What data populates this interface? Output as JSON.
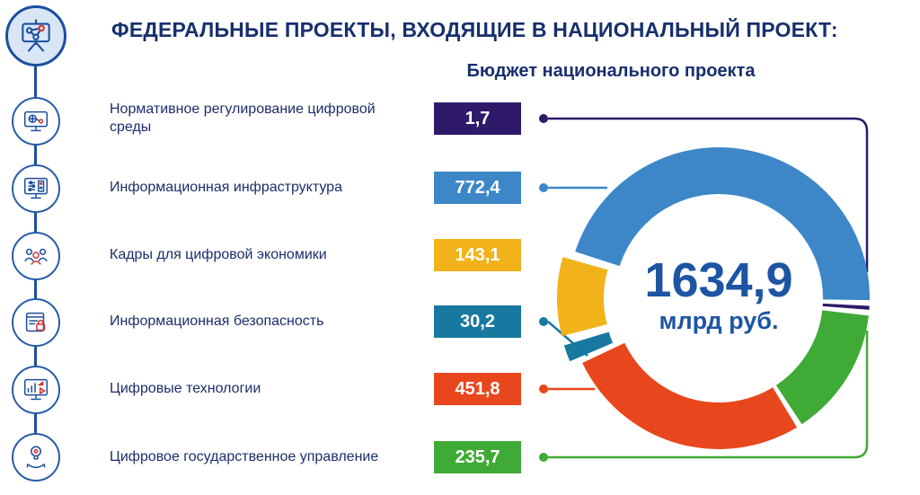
{
  "header": {
    "title": "ФЕДЕРАЛЬНЫЕ ПРОЕКТЫ, ВХОДЯЩИЕ В НАЦИОНАЛЬНЫЙ ПРОЕКТ:"
  },
  "chart_data": {
    "type": "pie",
    "subtype": "donut",
    "title": "Бюджет национального проекта",
    "total_display": "1634,9",
    "total_value": 1634.9,
    "unit": "млрд руб.",
    "categories": [
      "Нормативное регулирование цифровой среды",
      "Информационная инфраструктура",
      "Кадры для цифровой экономики",
      "Информационная безопасность",
      "Цифровые технологии",
      "Цифровое государственное управление"
    ],
    "values": [
      1.7,
      772.4,
      143.1,
      30.2,
      451.8,
      235.7
    ],
    "display_values": [
      "1,7",
      "772,4",
      "143,1",
      "30,2",
      "451,8",
      "235,7"
    ],
    "colors": [
      "#2e1a68",
      "#3d87c9",
      "#f2b21a",
      "#17799f",
      "#e8471d",
      "#3faa35"
    ],
    "legend_position": "left",
    "donut": {
      "order": [
        1,
        0,
        5,
        4,
        3,
        2
      ],
      "start_angle": 288,
      "gap_deg": 2.2,
      "min_deg": 1.5,
      "explode": {
        "2": 12,
        "3": 12
      }
    }
  },
  "icons": [
    "presentation-network-icon",
    "monitor-network-icon",
    "monitor-settings-icon",
    "people-icon",
    "document-lock-icon",
    "monitor-chart-icon",
    "idea-hand-icon"
  ],
  "theme": {
    "title_color": "#172f6d",
    "label_color": "#1c2e6b",
    "center_color": "#1d55a4",
    "rail_color": "#1c4f9e"
  }
}
